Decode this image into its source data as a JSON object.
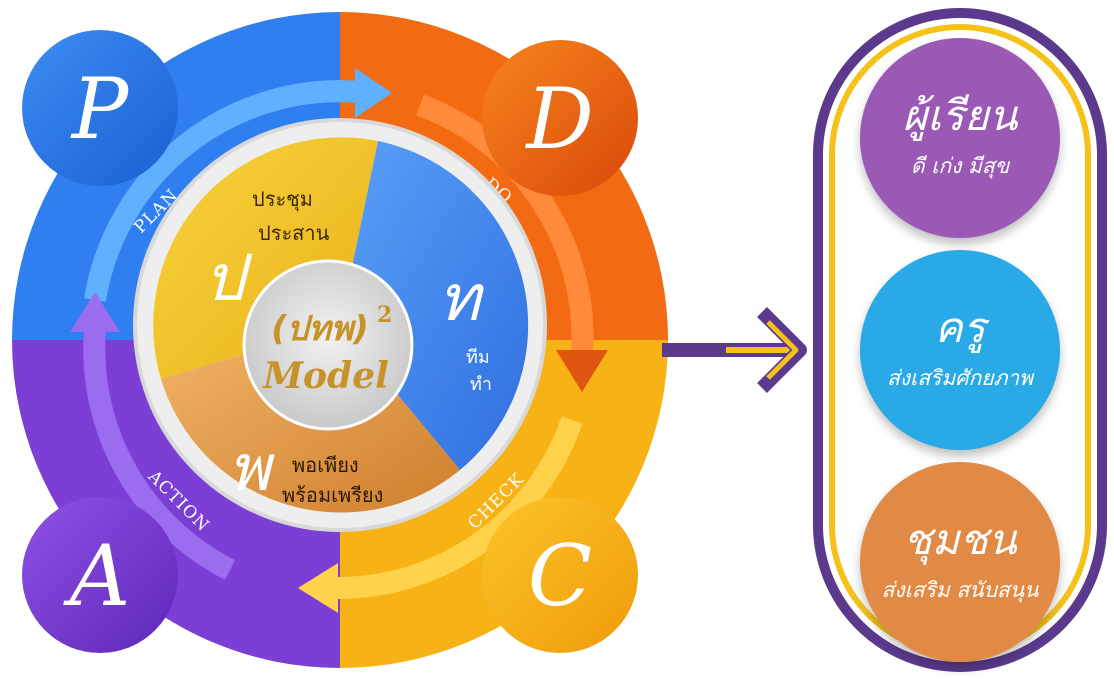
{
  "cycle": {
    "center": {
      "title": "(ปทพ)",
      "superscript": "2",
      "subtitle": "Model"
    },
    "stages": {
      "plan": {
        "letter": "P",
        "label": "PLAN"
      },
      "do": {
        "letter": "D",
        "label": "DO"
      },
      "check": {
        "letter": "C",
        "label": "CHECK"
      },
      "action": {
        "letter": "A",
        "label": "ACTION"
      }
    },
    "segments": {
      "por": {
        "char": "ป",
        "line1": "ประชุม",
        "line2": "ประสาน"
      },
      "tor": {
        "char": "ท",
        "line1": "ทีม",
        "line2": "ทำ"
      },
      "phor": {
        "char": "พ",
        "line1": "พอเพียง",
        "line2": "พร้อมเพรียง"
      }
    }
  },
  "outcomes": [
    {
      "title": "ผู้เรียน",
      "subtitle": "ดี เก่ง มีสุข",
      "color": "#9b59b6"
    },
    {
      "title": "ครู",
      "subtitle": "ส่งเสริมศักยภาพ",
      "color": "#29a9e6"
    },
    {
      "title": "ชุมชน",
      "subtitle": "ส่งเสริม สนับสนุน",
      "color": "#e08a46"
    }
  ],
  "colors": {
    "plan": "#2f7ff0",
    "do": "#f26a12",
    "check": "#f7b215",
    "action": "#7b3fd6",
    "panel_border": "#5b3a8e",
    "panel_accent": "#f6c21a"
  }
}
